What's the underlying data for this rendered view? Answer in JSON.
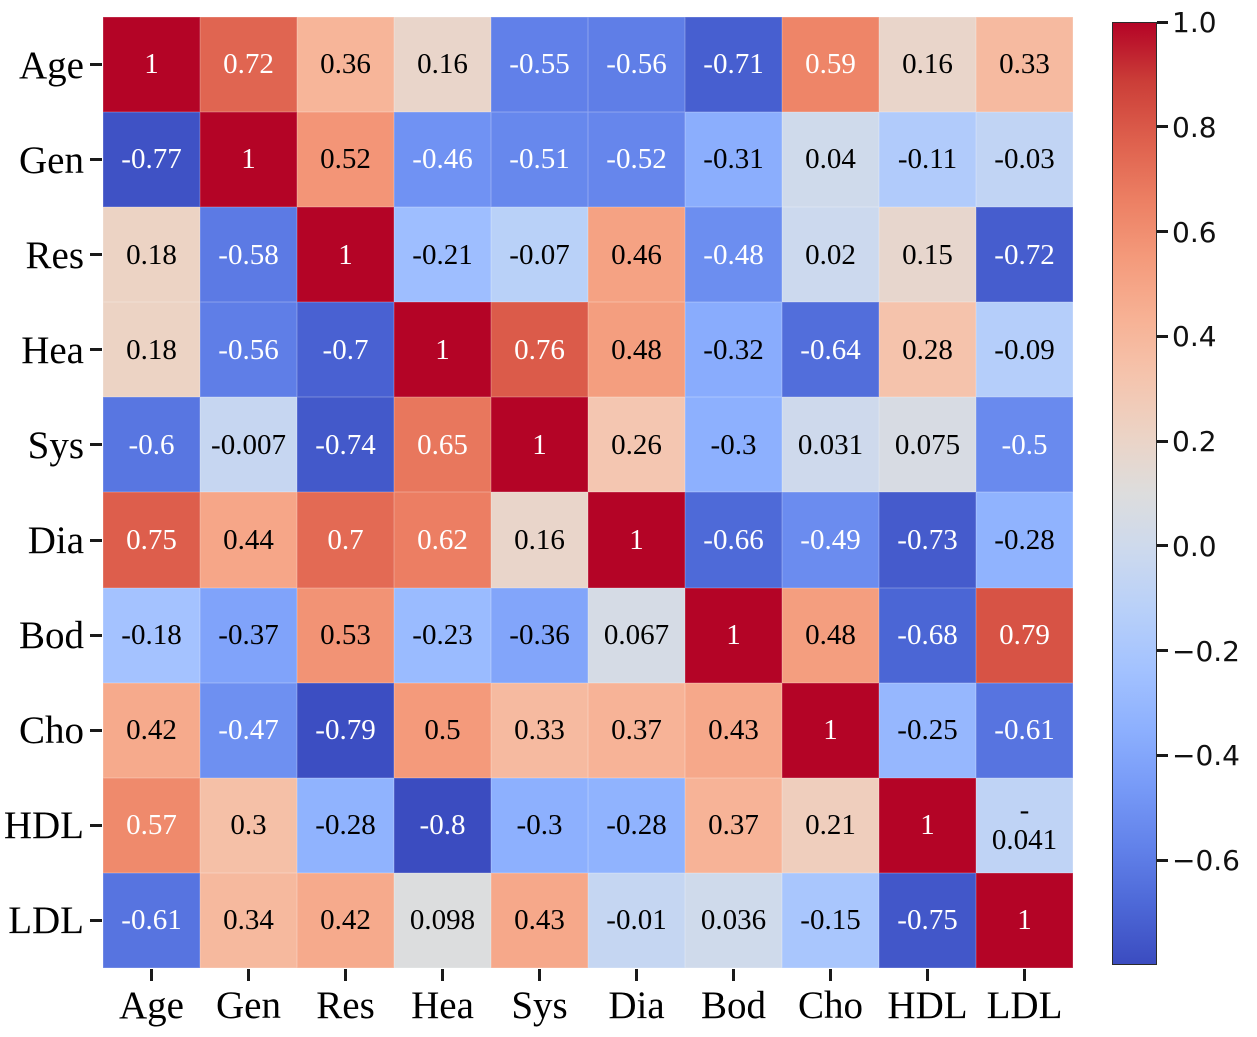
{
  "chart_data": {
    "type": "heatmap",
    "title": "",
    "xlabel": "",
    "ylabel": "",
    "x_tick_labels": [
      "Age",
      "Gen",
      "Res",
      "Hea",
      "Sys",
      "Dia",
      "Bod",
      "Cho",
      "HDL",
      "LDL"
    ],
    "y_tick_labels": [
      "Age",
      "Gen",
      "Res",
      "Hea",
      "Sys",
      "Dia",
      "Bod",
      "Cho",
      "HDL",
      "LDL"
    ],
    "matrix": [
      [
        1,
        0.72,
        0.36,
        0.16,
        -0.55,
        -0.56,
        -0.71,
        0.59,
        0.16,
        0.33
      ],
      [
        -0.77,
        1,
        0.52,
        -0.46,
        -0.51,
        -0.52,
        -0.31,
        0.04,
        -0.11,
        -0.03
      ],
      [
        0.18,
        -0.58,
        1,
        -0.21,
        -0.07,
        0.46,
        -0.48,
        0.02,
        0.15,
        -0.72
      ],
      [
        0.18,
        -0.56,
        -0.7,
        1,
        0.76,
        0.48,
        -0.32,
        -0.64,
        0.28,
        -0.09
      ],
      [
        -0.6,
        -0.007,
        -0.74,
        0.65,
        1,
        0.26,
        -0.3,
        0.031,
        0.075,
        -0.5
      ],
      [
        0.75,
        0.44,
        0.7,
        0.62,
        0.16,
        1,
        -0.66,
        -0.49,
        -0.73,
        -0.28
      ],
      [
        -0.18,
        -0.37,
        0.53,
        -0.23,
        -0.36,
        0.067,
        1,
        0.48,
        -0.68,
        0.79
      ],
      [
        0.42,
        -0.47,
        -0.79,
        0.5,
        0.33,
        0.37,
        0.43,
        1,
        -0.25,
        -0.61
      ],
      [
        0.57,
        0.3,
        -0.28,
        -0.8,
        -0.3,
        -0.28,
        0.37,
        0.21,
        1,
        -0.041
      ],
      [
        -0.61,
        0.34,
        0.42,
        0.098,
        0.43,
        -0.01,
        0.036,
        -0.15,
        -0.75,
        1
      ]
    ],
    "annot_labels": [
      [
        "1",
        "0.72",
        "0.36",
        "0.16",
        "-0.55",
        "-0.56",
        "-0.71",
        "0.59",
        "0.16",
        "0.33"
      ],
      [
        "-0.77",
        "1",
        "0.52",
        "-0.46",
        "-0.51",
        "-0.52",
        "-0.31",
        "0.04",
        "-0.11",
        "-0.03"
      ],
      [
        "0.18",
        "-0.58",
        "1",
        "-0.21",
        "-0.07",
        "0.46",
        "-0.48",
        "0.02",
        "0.15",
        "-0.72"
      ],
      [
        "0.18",
        "-0.56",
        "-0.7",
        "1",
        "0.76",
        "0.48",
        "-0.32",
        "-0.64",
        "0.28",
        "-0.09"
      ],
      [
        "-0.6",
        "-0.007",
        "-0.74",
        "0.65",
        "1",
        "0.26",
        "-0.3",
        "0.031",
        "0.075",
        "-0.5"
      ],
      [
        "0.75",
        "0.44",
        "0.7",
        "0.62",
        "0.16",
        "1",
        "-0.66",
        "-0.49",
        "-0.73",
        "-0.28"
      ],
      [
        "-0.18",
        "-0.37",
        "0.53",
        "-0.23",
        "-0.36",
        "0.067",
        "1",
        "0.48",
        "-0.68",
        "0.79"
      ],
      [
        "0.42",
        "-0.47",
        "-0.79",
        "0.5",
        "0.33",
        "0.37",
        "0.43",
        "1",
        "-0.25",
        "-0.61"
      ],
      [
        "0.57",
        "0.3",
        "-0.28",
        "-0.8",
        "-0.3",
        "-0.28",
        "0.37",
        "0.21",
        "1",
        "-\n0.041"
      ],
      [
        "-0.61",
        "0.34",
        "0.42",
        "0.098",
        "0.43",
        "-0.01",
        "0.036",
        "-0.15",
        "-0.75",
        "1"
      ]
    ],
    "annot_white": [
      [
        true,
        true,
        false,
        false,
        true,
        true,
        true,
        true,
        false,
        false
      ],
      [
        true,
        true,
        false,
        true,
        true,
        true,
        false,
        false,
        false,
        false
      ],
      [
        false,
        true,
        true,
        false,
        false,
        false,
        true,
        false,
        false,
        true
      ],
      [
        false,
        true,
        true,
        true,
        true,
        false,
        false,
        true,
        false,
        false
      ],
      [
        true,
        false,
        true,
        true,
        true,
        false,
        false,
        false,
        false,
        true
      ],
      [
        true,
        false,
        true,
        true,
        false,
        true,
        true,
        true,
        true,
        false
      ],
      [
        false,
        false,
        false,
        false,
        false,
        false,
        true,
        false,
        true,
        true
      ],
      [
        false,
        true,
        true,
        false,
        false,
        false,
        false,
        true,
        false,
        true
      ],
      [
        true,
        false,
        false,
        true,
        false,
        false,
        false,
        false,
        true,
        false
      ],
      [
        true,
        false,
        false,
        false,
        false,
        false,
        false,
        false,
        true,
        true
      ]
    ],
    "colormap": "coolwarm",
    "vmin": -0.8,
    "vmax": 1.0,
    "grid_on": false,
    "colorbar": {
      "position": "right",
      "tick_labels": [
        "1.0",
        "0.8",
        "0.6",
        "0.4",
        "0.2",
        "0.0",
        "−0.2",
        "−0.4",
        "−0.6"
      ],
      "tick_values": [
        1.0,
        0.8,
        0.6,
        0.4,
        0.2,
        0.0,
        -0.2,
        -0.4,
        -0.6
      ]
    },
    "colors": {
      "max_color": "#b40426",
      "mid_color": "#dddddd",
      "min_color": "#3b4cc0",
      "annot_dark": "#000000",
      "annot_light": "#ffffff",
      "tick_color": "#1a1a1a",
      "background": "#ffffff"
    }
  }
}
